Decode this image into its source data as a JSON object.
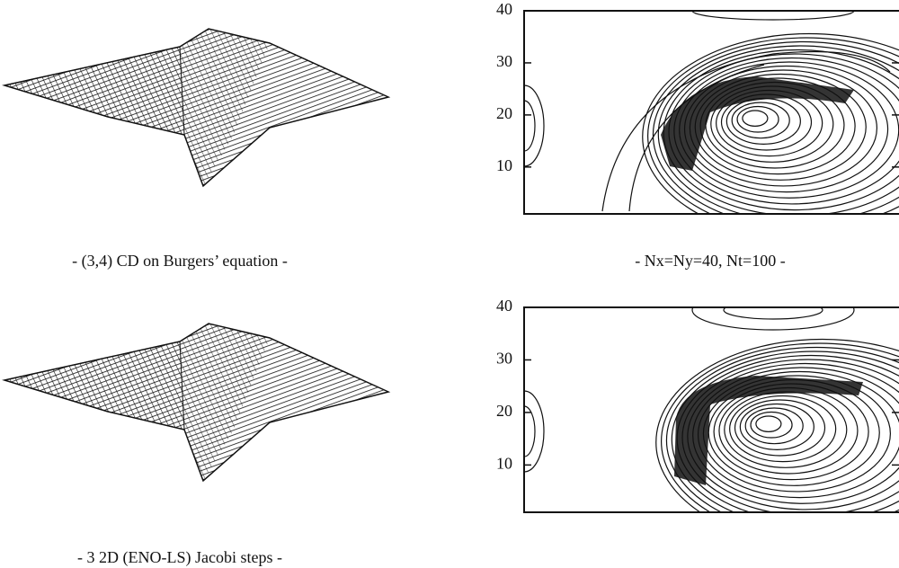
{
  "figure": {
    "panels": [
      {
        "caption": "- (3,4) CD on Burgers’ equation -"
      },
      {
        "caption": "- Nx=Ny=40, Nt=100 -",
        "ylim": [
          1,
          40
        ],
        "yticks": [
          10,
          20,
          30,
          40
        ]
      },
      {
        "caption": "- 3 2D (ENO-LS) Jacobi steps -"
      },
      {
        "ylim": [
          1,
          40
        ],
        "yticks": [
          10,
          20,
          30,
          40
        ]
      }
    ]
  }
}
